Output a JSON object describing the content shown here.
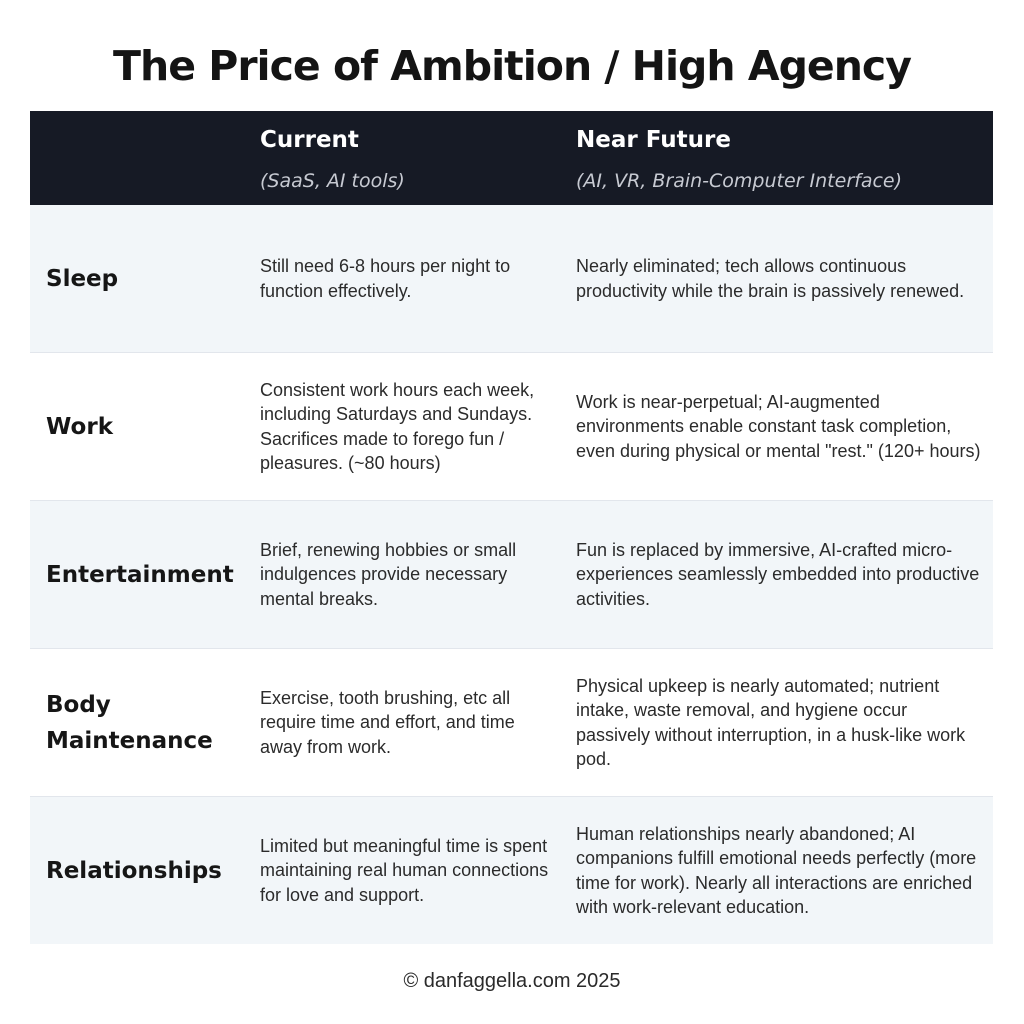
{
  "title": "The Price of Ambition / High Agency",
  "header": {
    "current_title": "Current",
    "current_sub": "(SaaS, AI tools)",
    "future_title": "Near Future",
    "future_sub": "(AI, VR, Brain-Computer Interface)"
  },
  "rows": [
    {
      "label": "Sleep",
      "current": "Still need 6-8 hours per night to function effectively.",
      "future": "Nearly eliminated; tech allows continuous productivity while the brain is passively renewed."
    },
    {
      "label": "Work",
      "current": "Consistent work hours each week, including Saturdays and Sundays. Sacrifices made to forego fun / pleasures. (~80 hours)",
      "future": "Work is near-perpetual; AI-augmented environments enable constant task completion, even during physical or mental \"rest.\" (120+ hours)"
    },
    {
      "label": "Entertainment",
      "current": "Brief, renewing hobbies or small indulgences provide necessary mental breaks.",
      "future": "Fun is replaced by immersive, AI-crafted micro-experiences seamlessly embedded into productive activities."
    },
    {
      "label": "Body Maintenance",
      "current": "Exercise, tooth brushing, etc all require time and effort, and time away from work.",
      "future": "Physical upkeep is nearly automated; nutrient intake, waste removal, and hygiene occur passively without interruption, in a husk-like work pod."
    },
    {
      "label": "Relationships",
      "current": "Limited but meaningful time is spent maintaining real human connections for love and support.",
      "future": "Human relationships nearly abandoned; AI companions fulfill emotional needs perfectly (more time for work). Nearly all interactions are enriched with work-relevant education."
    }
  ],
  "footer": "© danfaggella.com 2025",
  "colors": {
    "header_bg": "#161a25",
    "row_alt_bg": "#f2f6f9",
    "row_bg": "#ffffff"
  }
}
